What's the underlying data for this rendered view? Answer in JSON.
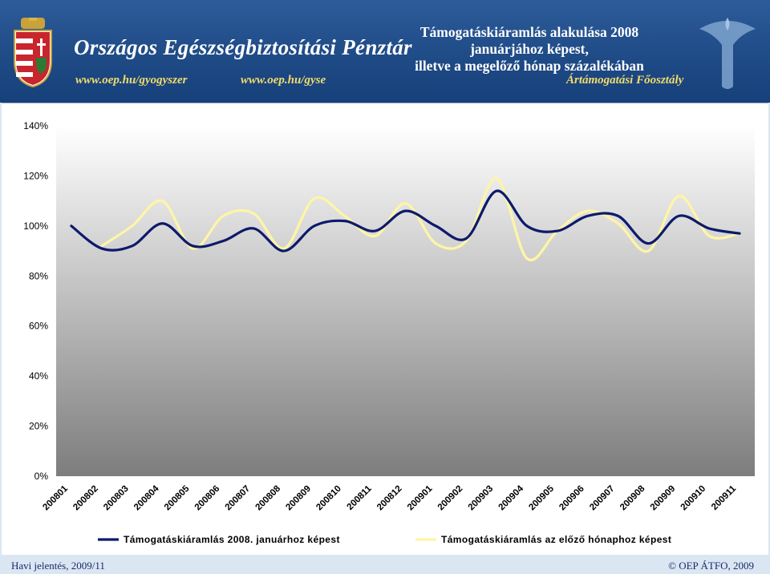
{
  "header": {
    "org_name": "Országos Egészségbiztosítási Pénztár",
    "url1": "www.oep.hu/gyogyszer",
    "url2": "www.oep.hu/gyse",
    "title_lines": [
      "Támogatáskiáramlás alakulása 2008",
      "januárjához képest,",
      "illetve a megelőző hónap százalékában"
    ],
    "department": "Ártámogatási Főosztály"
  },
  "footer": {
    "left": "Havi jelentés, 2009/11",
    "right": "© OEP ÁTFO, 2009"
  },
  "colors": {
    "header_bg": "#1f4b86",
    "series1": "#0d1a6b",
    "series2": "#fff5a6"
  },
  "chart_data": {
    "type": "line",
    "categories": [
      "200801",
      "200802",
      "200803",
      "200804",
      "200805",
      "200806",
      "200807",
      "200808",
      "200809",
      "200810",
      "200811",
      "200812",
      "200901",
      "200902",
      "200903",
      "200904",
      "200905",
      "200906",
      "200907",
      "200908",
      "200909",
      "200910",
      "200911"
    ],
    "ylim": [
      0,
      140
    ],
    "yticks": [
      0,
      20,
      40,
      60,
      80,
      100,
      120,
      140
    ],
    "ytick_labels": [
      "0%",
      "20%",
      "40%",
      "60%",
      "80%",
      "100%",
      "120%",
      "140%"
    ],
    "grid": false,
    "legend_position": "bottom",
    "series": [
      {
        "name": "Támogatáskiáramlás 2008. januárhoz képest",
        "color": "#0d1a6b",
        "values": [
          100,
          91,
          92,
          101,
          92,
          94,
          99,
          90,
          100,
          102,
          98,
          106,
          100,
          95,
          114,
          100,
          98,
          104,
          104,
          93,
          104,
          99,
          97
        ]
      },
      {
        "name": "Támogatáskiáramlás az előző hónaphoz képest",
        "color": "#fff5a6",
        "values": [
          null,
          92,
          100,
          110,
          91,
          104,
          105,
          91,
          111,
          104,
          96,
          109,
          93,
          94,
          119,
          87,
          98,
          106,
          101,
          90,
          112,
          96,
          97
        ]
      }
    ]
  }
}
